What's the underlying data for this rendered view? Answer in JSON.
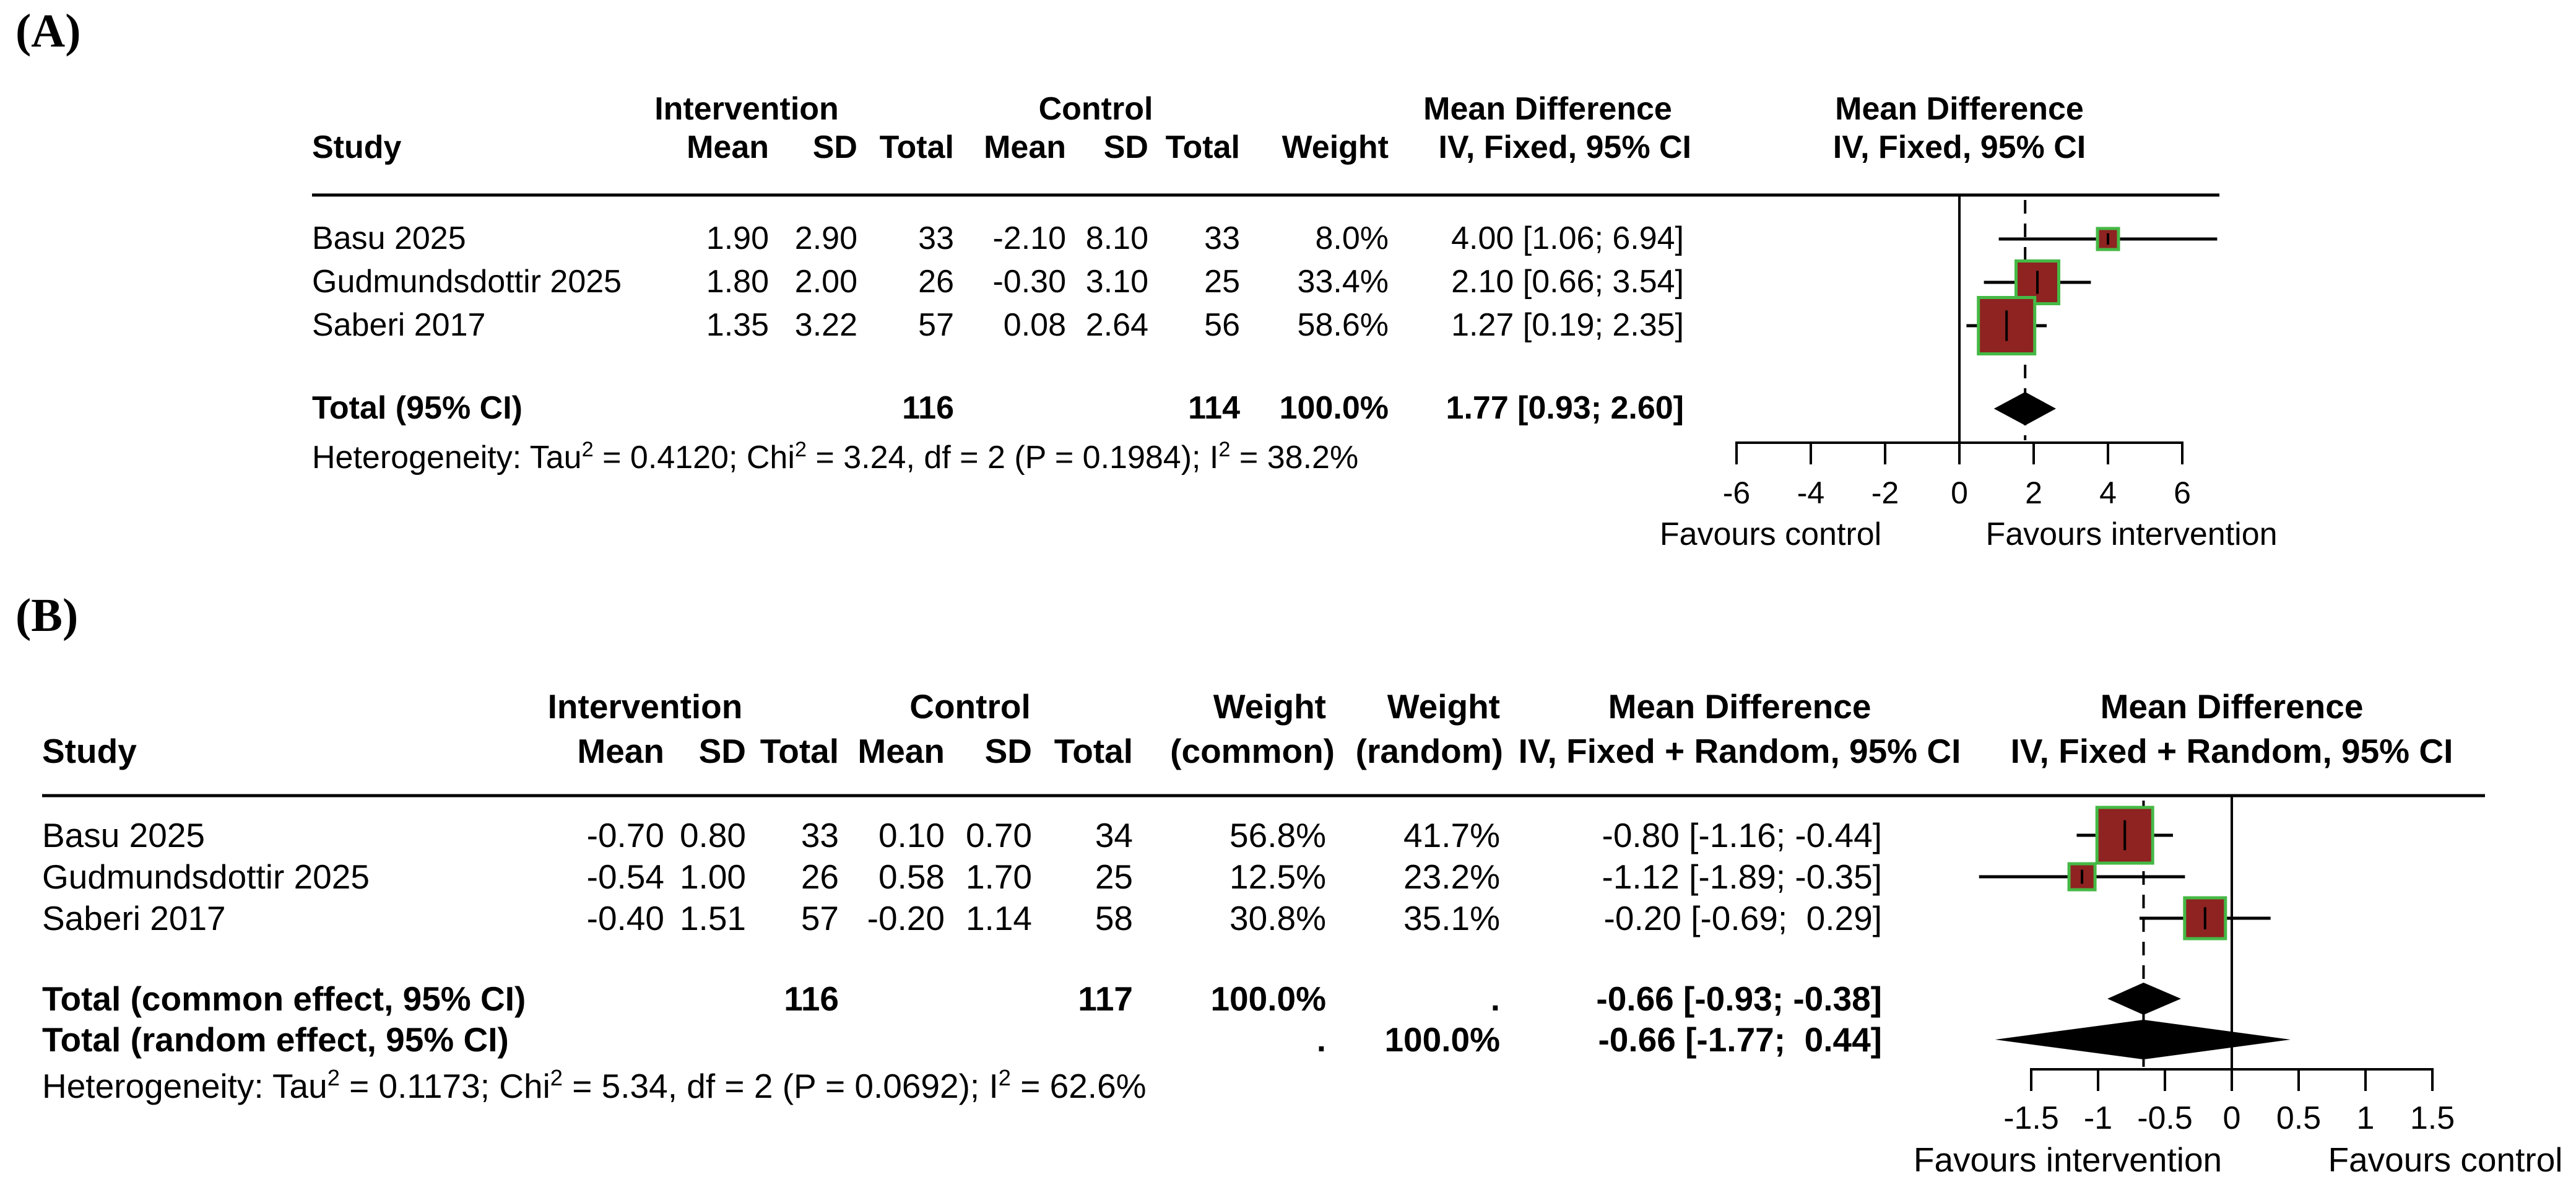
{
  "colors": {
    "background": "#ffffff",
    "square_fill": "#8e2321",
    "square_border": "#45b945",
    "diamond": "#000000",
    "line": "#000000"
  },
  "chart_data": [
    {
      "type": "forest",
      "panel_label": "(A)",
      "effect_model": "IV, Fixed",
      "header": {
        "study": "Study",
        "intervention": "Intervention",
        "control": "Control",
        "mean": "Mean",
        "sd": "SD",
        "total": "Total",
        "weight": "Weight",
        "md_title": "Mean Difference",
        "md_plot_title": "Mean Difference",
        "ci_label": "IV, Fixed, 95% CI",
        "ci_plot_label": "IV, Fixed, 95% CI"
      },
      "studies": [
        {
          "study": "Basu 2025",
          "i_mean": "1.90",
          "i_sd": "2.90",
          "i_total": "33",
          "c_mean": "-2.10",
          "c_sd": "8.10",
          "c_total": "33",
          "weight": "8.0%",
          "md_label": "4.00 [1.06; 6.94]",
          "md": 4.0,
          "ci_low": 1.06,
          "ci_high": 6.94,
          "weight_value": 8.0
        },
        {
          "study": "Gudmundsdottir 2025",
          "i_mean": "1.80",
          "i_sd": "2.00",
          "i_total": "26",
          "c_mean": "-0.30",
          "c_sd": "3.10",
          "c_total": "25",
          "weight": "33.4%",
          "md_label": "2.10 [0.66; 3.54]",
          "md": 2.1,
          "ci_low": 0.66,
          "ci_high": 3.54,
          "weight_value": 33.4
        },
        {
          "study": "Saberi 2017",
          "i_mean": "1.35",
          "i_sd": "3.22",
          "i_total": "57",
          "c_mean": "0.08",
          "c_sd": "2.64",
          "c_total": "56",
          "weight": "58.6%",
          "md_label": "1.27 [0.19; 2.35]",
          "md": 1.27,
          "ci_low": 0.19,
          "ci_high": 2.35,
          "weight_value": 58.6
        }
      ],
      "totals": [
        {
          "study": "Total (95% CI)",
          "i_total": "116",
          "c_total": "114",
          "weight": "100.0%",
          "md_label": "1.77 [0.93; 2.60]",
          "md": 1.77,
          "ci_low": 0.93,
          "ci_high": 2.6
        }
      ],
      "heterogeneity_parts": [
        {
          "t": "Heterogeneity: Tau"
        },
        {
          "t": "2",
          "sup": true
        },
        {
          "t": " = 0.4120; Chi"
        },
        {
          "t": "2",
          "sup": true
        },
        {
          "t": " = 3.24, df = 2 (P = 0.1984); I"
        },
        {
          "t": "2",
          "sup": true
        },
        {
          "t": " = 38.2%"
        }
      ],
      "axis": {
        "ticks": [
          -6,
          -4,
          -2,
          0,
          2,
          4,
          6
        ],
        "tick_labels": [
          "-6",
          "-4",
          "-2",
          "0",
          "2",
          "4",
          "6"
        ],
        "pooled": 1.77,
        "favours_left": "Favours control",
        "favours_right": "Favours intervention"
      }
    },
    {
      "type": "forest",
      "panel_label": "(B)",
      "effect_model": "IV, Fixed + Random",
      "header": {
        "study": "Study",
        "intervention": "Intervention",
        "control": "Control",
        "mean": "Mean",
        "sd": "SD",
        "total": "Total",
        "weight": "Weight",
        "weight_common_sub": "(common)",
        "weight_random_sub": "(random)",
        "md_title": "Mean Difference",
        "md_plot_title": "Mean Difference",
        "ci_label": "IV, Fixed + Random, 95% CI",
        "ci_plot_label": "IV, Fixed + Random, 95% CI"
      },
      "studies": [
        {
          "study": "Basu 2025",
          "i_mean": "-0.70",
          "i_sd": "0.80",
          "i_total": "33",
          "c_mean": "0.10",
          "c_sd": "0.70",
          "c_total": "34",
          "weight_common": "56.8%",
          "weight_random": "41.7%",
          "md_label": "-0.80 [-1.16; -0.44]",
          "md": -0.8,
          "ci_low": -1.16,
          "ci_high": -0.44,
          "weight_value": 56.8
        },
        {
          "study": "Gudmundsdottir 2025",
          "i_mean": "-0.54",
          "i_sd": "1.00",
          "i_total": "26",
          "c_mean": "0.58",
          "c_sd": "1.70",
          "c_total": "25",
          "weight_common": "12.5%",
          "weight_random": "23.2%",
          "md_label": "-1.12 [-1.89; -0.35]",
          "md": -1.12,
          "ci_low": -1.89,
          "ci_high": -0.35,
          "weight_value": 12.5
        },
        {
          "study": "Saberi 2017",
          "i_mean": "-0.40",
          "i_sd": "1.51",
          "i_total": "57",
          "c_mean": "-0.20",
          "c_sd": "1.14",
          "c_total": "58",
          "weight_common": "30.8%",
          "weight_random": "35.1%",
          "md_label": "-0.20 [-0.69;  0.29]",
          "md": -0.2,
          "ci_low": -0.69,
          "ci_high": 0.29,
          "weight_value": 30.8
        }
      ],
      "totals": [
        {
          "study": "Total (common effect, 95% CI)",
          "i_total": "116",
          "c_total": "117",
          "weight_common": "100.0%",
          "weight_random": ".",
          "md_label": "-0.66 [-0.93; -0.38]",
          "md": -0.66,
          "ci_low": -0.93,
          "ci_high": -0.38
        },
        {
          "study": "Total (random effect, 95% CI)",
          "weight_common": ".",
          "weight_random": "100.0%",
          "md_label": "-0.66 [-1.77;  0.44]",
          "md": -0.66,
          "ci_low": -1.77,
          "ci_high": 0.44
        }
      ],
      "heterogeneity_parts": [
        {
          "t": "Heterogeneity: Tau"
        },
        {
          "t": "2",
          "sup": true
        },
        {
          "t": " = 0.1173; Chi"
        },
        {
          "t": "2",
          "sup": true
        },
        {
          "t": " = 5.34, df = 2 (P = 0.0692); I"
        },
        {
          "t": "2",
          "sup": true
        },
        {
          "t": " = 62.6%"
        }
      ],
      "axis": {
        "ticks": [
          -1.5,
          -1,
          -0.5,
          0,
          0.5,
          1,
          1.5
        ],
        "tick_labels": [
          "-1.5",
          "-1",
          "-0.5",
          "0",
          "0.5",
          "1",
          "1.5"
        ],
        "pooled": -0.66,
        "favours_left": "Favours intervention",
        "favours_right": "Favours control"
      }
    }
  ]
}
